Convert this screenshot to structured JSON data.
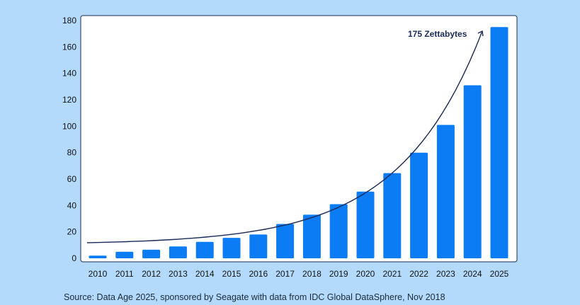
{
  "chart_data": {
    "type": "bar",
    "categories": [
      "2010",
      "2011",
      "2012",
      "2013",
      "2014",
      "2015",
      "2016",
      "2017",
      "2018",
      "2019",
      "2020",
      "2021",
      "2022",
      "2023",
      "2024",
      "2025"
    ],
    "values": [
      2,
      5,
      6.5,
      9,
      12.5,
      15.5,
      18,
      26,
      33,
      41,
      50.5,
      64.5,
      80,
      101,
      131,
      175
    ],
    "ylim": [
      0,
      180
    ],
    "yticks": [
      0,
      20,
      40,
      60,
      80,
      100,
      120,
      140,
      160,
      180
    ],
    "trend_curve": true,
    "grid": false,
    "bar_color": "#0b7cf3",
    "annotation": {
      "text": "175 Zettabytes"
    }
  },
  "source": "Source: Data Age 2025, sponsored by Seagate with data from IDC Global DataSphere, Nov 2018"
}
